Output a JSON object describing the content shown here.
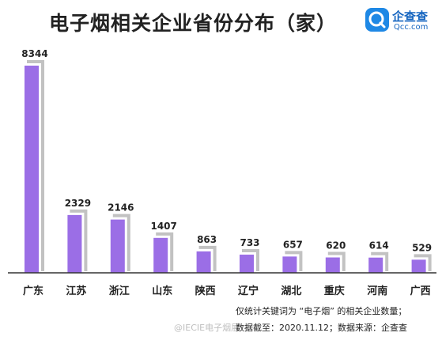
{
  "header": {
    "title": "电子烟相关企业省份分布（家）",
    "logo_name": "企查查",
    "logo_url": "Qcc.com"
  },
  "chart_data": {
    "type": "bar",
    "title": "电子烟相关企业省份分布（家）",
    "categories": [
      "广东",
      "江苏",
      "浙江",
      "山东",
      "陕西",
      "辽宁",
      "湖北",
      "重庆",
      "河南",
      "广西"
    ],
    "values": [
      8344,
      2329,
      2146,
      1407,
      863,
      733,
      657,
      620,
      614,
      529
    ],
    "ylim": [
      0,
      8344
    ],
    "grid": false,
    "legend": "none",
    "colors": {
      "bar": "#9b6ee6",
      "shadow": "#c2c2c2",
      "axis": "#333333"
    }
  },
  "notes": {
    "line1": "仅统计关键词为 “电子烟” 的相关企业数量；",
    "line2": "数据截至：2020.11.12；数据来源：企查查"
  },
  "watermark": "@IECIE电子烟展"
}
